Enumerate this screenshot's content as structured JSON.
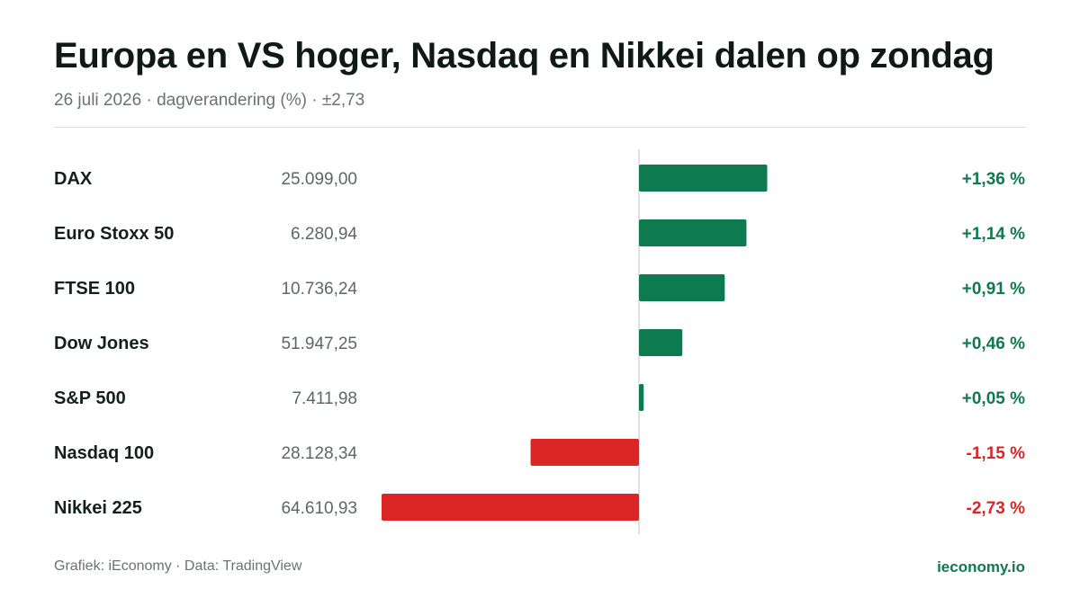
{
  "header": {
    "title": "Europa en VS hoger, Nasdaq en Nikkei dalen op zondag",
    "subtitle": "26 juli 2026 · dagverandering (%) · ±2,73"
  },
  "footer": {
    "source": "Grafiek: iEconomy · Data: TradingView",
    "brand": "ieconomy.io"
  },
  "colors": {
    "positive": "#0e7a4f",
    "negative": "#dc2626",
    "name_text": "#14201c",
    "value_text": "#5f6764",
    "axis": "#d6d9d8"
  },
  "chart_data": {
    "type": "bar",
    "orientation": "horizontal",
    "categories": [
      "DAX",
      "Euro Stoxx 50",
      "FTSE 100",
      "Dow Jones",
      "S&P 500",
      "Nasdaq 100",
      "Nikkei 225"
    ],
    "index_levels": [
      "25.099,00",
      "6.280,94",
      "10.736,24",
      "51.947,25",
      "7.411,98",
      "28.128,34",
      "64.610,93"
    ],
    "values": [
      1.36,
      1.14,
      0.91,
      0.46,
      0.05,
      -1.15,
      -2.73
    ],
    "value_labels": [
      "+1,36 %",
      "+1,14 %",
      "+0,91 %",
      "+0,46 %",
      "+0,05 %",
      "-1,15 %",
      "-2,73 %"
    ],
    "xlim": [
      -2.73,
      2.73
    ]
  }
}
